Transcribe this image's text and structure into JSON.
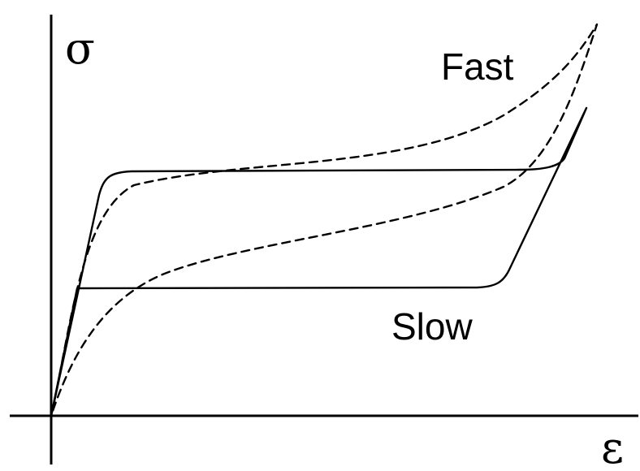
{
  "labels": {
    "sigma": "σ",
    "epsilon": "ε",
    "fast": "Fast",
    "slow": "Slow"
  }
}
